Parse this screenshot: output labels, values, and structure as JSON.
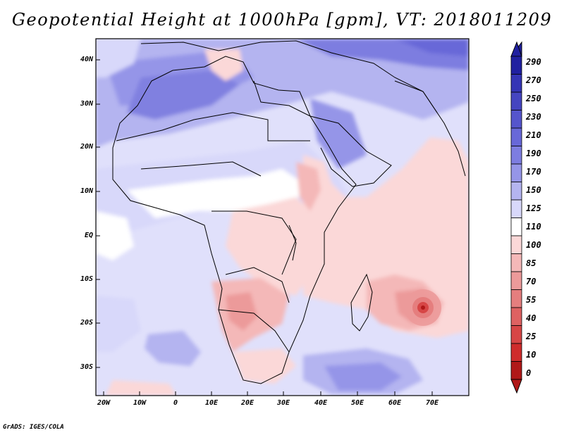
{
  "title": "Geopotential Height at 1000hPa [gpm], VT: 2018011209",
  "credit": "GrADS: IGES/COLA",
  "map": {
    "variable": "Geopotential Height",
    "level": "1000hPa",
    "units": "gpm",
    "valid_time": "2018011209",
    "lat_labels": [
      "40N",
      "30N",
      "20N",
      "10N",
      "EQ",
      "10S",
      "20S",
      "30S"
    ],
    "lon_labels": [
      "20W",
      "10W",
      "0",
      "10E",
      "20E",
      "30E",
      "40E",
      "50E",
      "60E",
      "70E"
    ]
  },
  "colorbar": {
    "levels": [
      "290",
      "270",
      "250",
      "230",
      "210",
      "190",
      "170",
      "150",
      "125",
      "110",
      "100",
      "85",
      "70",
      "55",
      "40",
      "25",
      "10",
      "0"
    ],
    "colors": [
      "#2020a0",
      "#3535b5",
      "#4545c0",
      "#5555cc",
      "#6868d8",
      "#7d7de0",
      "#9595e8",
      "#b4b4f0",
      "#d8d8fa",
      "#ffffff",
      "#fbd8d8",
      "#f4b8b8",
      "#ec9a9a",
      "#e57e7e",
      "#de6262",
      "#d74646",
      "#cf2c2c",
      "#b01818"
    ]
  }
}
